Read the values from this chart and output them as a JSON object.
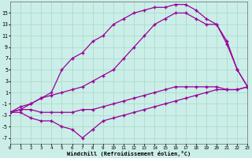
{
  "bg_color": "#cceee8",
  "grid_color": "#aaddcc",
  "line_color": "#990099",
  "xlabel": "Windchill (Refroidissement éolien,°C)",
  "xlim": [
    0,
    23
  ],
  "ylim": [
    -8,
    17
  ],
  "xticks": [
    0,
    1,
    2,
    3,
    4,
    5,
    6,
    7,
    8,
    9,
    10,
    11,
    12,
    13,
    14,
    15,
    16,
    17,
    18,
    19,
    20,
    21,
    22,
    23
  ],
  "yticks": [
    -7,
    -5,
    -3,
    -1,
    1,
    3,
    5,
    7,
    9,
    11,
    13,
    15
  ],
  "curve_dip_x": [
    0,
    1,
    2,
    3,
    4,
    5,
    6,
    7,
    8,
    9,
    10,
    11,
    12,
    13,
    14,
    15,
    16,
    17,
    18,
    19,
    20,
    21,
    22,
    23
  ],
  "curve_dip_y": [
    -2.5,
    -2.5,
    -3.5,
    -4,
    -4,
    -5,
    -5.5,
    -7,
    -5.5,
    -4,
    -3.5,
    -3,
    -2.5,
    -2,
    -1.5,
    -1,
    -0.5,
    0,
    0.5,
    1,
    1.5,
    1.5,
    1.5,
    2
  ],
  "curve_top_x": [
    0,
    1,
    2,
    3,
    4,
    5,
    6,
    7,
    8,
    9,
    10,
    11,
    12,
    13,
    14,
    15,
    16,
    17,
    18,
    19,
    20,
    21,
    22,
    23
  ],
  "curve_top_y": [
    -2.5,
    -2,
    -1,
    0,
    1,
    5,
    7,
    8,
    10,
    11,
    13,
    14,
    15,
    15.5,
    16,
    16,
    16.5,
    16.5,
    15.5,
    14,
    13,
    9.5,
    5,
    2
  ],
  "curve_mid_x": [
    0,
    1,
    2,
    3,
    4,
    5,
    6,
    7,
    8,
    9,
    10,
    11,
    12,
    13,
    14,
    15,
    16,
    17,
    18,
    19,
    20,
    21,
    22,
    23
  ],
  "curve_mid_y": [
    -2.5,
    -1.5,
    -1,
    0,
    0.5,
    1,
    1.5,
    2,
    3,
    4,
    5,
    7,
    9,
    11,
    13,
    14,
    15,
    15,
    14,
    13,
    13,
    10,
    5,
    2
  ],
  "curve_flat_x": [
    0,
    1,
    2,
    3,
    4,
    5,
    6,
    7,
    8,
    9,
    10,
    11,
    12,
    13,
    14,
    15,
    16,
    17,
    18,
    19,
    20,
    21,
    22,
    23
  ],
  "curve_flat_y": [
    -2.5,
    -2,
    -2,
    -2.5,
    -2.5,
    -2.5,
    -2.5,
    -2,
    -2,
    -1.5,
    -1,
    -0.5,
    0,
    0.5,
    1,
    1.5,
    2,
    2,
    2,
    2,
    2,
    1.5,
    1.5,
    2
  ]
}
